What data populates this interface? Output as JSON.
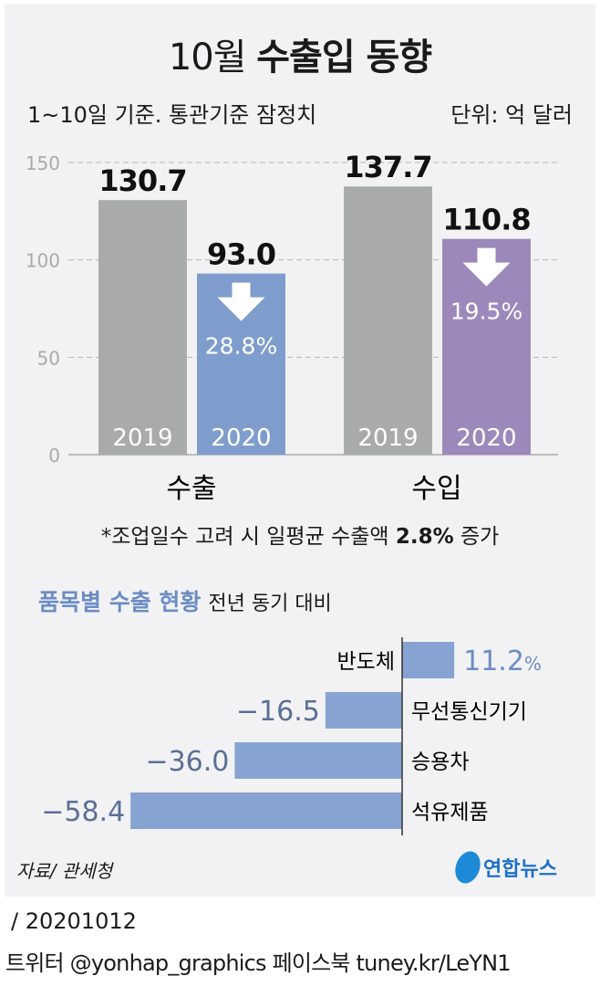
{
  "title_light": "10월",
  "title_bold": "수출입 동향",
  "subtitle": "1~10일 기준. 통관기준 잠정치",
  "unit": "단위: 억 달러",
  "footnote_pre": "*조업일수 고려 시 일평균 수출액 ",
  "footnote_bold": "2.8%",
  "footnote_post": " 증가",
  "section_title": "품목별 수출 현황",
  "section_sub": "전년 동기 대비",
  "source": "자료/ 관세청",
  "logo_text": "연합뉴스",
  "date": "/ 20201012",
  "social": "트위터 @yonhap_graphics  페이스북 tuney.kr/LeYN1",
  "colors": {
    "gray": "#a9aaac",
    "export": "#7f9dcc",
    "import": "#9d88bb",
    "item": "#87a3d2",
    "pct": "#6b8cc4"
  },
  "chart_data": [
    {
      "type": "bar",
      "title": "10월 수출입 동향",
      "ylim": [
        0,
        150
      ],
      "yticks": [
        "0",
        "50",
        "100",
        "150"
      ],
      "categories": [
        "수출",
        "수입"
      ],
      "series": [
        {
          "name": "2019",
          "values": [
            130.7,
            137.7
          ],
          "labels": [
            "130.7",
            "137.7"
          ]
        },
        {
          "name": "2020",
          "values": [
            93.0,
            110.8
          ],
          "labels": [
            "93.0",
            "110.8"
          ],
          "change": [
            "28.8%",
            "19.5%"
          ]
        }
      ]
    },
    {
      "type": "bar",
      "title": "품목별 수출 현황",
      "orientation": "horizontal",
      "unit": "%",
      "categories": [
        "반도체",
        "무선통신기기",
        "승용차",
        "석유제품"
      ],
      "values": [
        11.2,
        -16.5,
        -36.0,
        -58.4
      ],
      "labels": [
        "11.2",
        "−16.5",
        "−36.0",
        "−58.4"
      ]
    }
  ]
}
